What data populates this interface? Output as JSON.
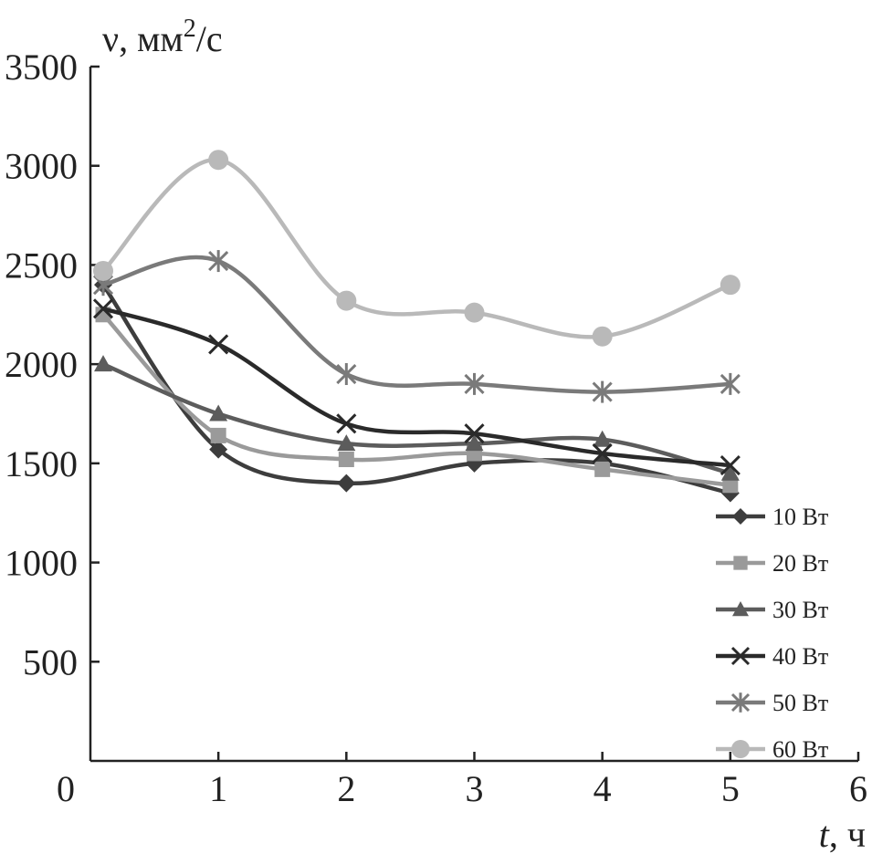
{
  "chart_data": {
    "type": "line",
    "title": "",
    "ylabel": "ν, мм²/с",
    "ylabel_base": "ν, мм",
    "ylabel_sup": "2",
    "ylabel_tail": "/с",
    "xlabel": "t, ч",
    "xlabel_var": "t",
    "xlabel_unit": ", ч",
    "xlim": [
      0,
      6
    ],
    "ylim": [
      0,
      3500
    ],
    "x_ticks": [
      "0",
      "1",
      "2",
      "3",
      "4",
      "5",
      "6"
    ],
    "y_ticks": [
      "500",
      "1000",
      "1500",
      "2000",
      "2500",
      "3000",
      "3500"
    ],
    "grid": false,
    "legend_position": "bottom-right",
    "x": [
      0.1,
      1,
      2,
      3,
      4,
      5
    ],
    "series": [
      {
        "name": "10 Вт",
        "marker": "diamond",
        "color": "#3d3d3d",
        "values": [
          2400,
          1570,
          1400,
          1500,
          1500,
          1350
        ]
      },
      {
        "name": "20 Вт",
        "marker": "square",
        "color": "#9a9a9a",
        "values": [
          2250,
          1640,
          1520,
          1550,
          1470,
          1390
        ]
      },
      {
        "name": "30 Вт",
        "marker": "triangle",
        "color": "#5c5c5c",
        "values": [
          2000,
          1750,
          1600,
          1600,
          1620,
          1450
        ]
      },
      {
        "name": "40 Вт",
        "marker": "x",
        "color": "#2a2a2a",
        "values": [
          2280,
          2100,
          1700,
          1650,
          1550,
          1490
        ]
      },
      {
        "name": "50 Вт",
        "marker": "asterisk",
        "color": "#7a7a7a",
        "values": [
          2400,
          2520,
          1950,
          1900,
          1860,
          1900
        ]
      },
      {
        "name": "60 Вт",
        "marker": "circle",
        "color": "#b9b9b9",
        "values": [
          2470,
          3030,
          2320,
          2260,
          2140,
          2400
        ]
      }
    ]
  }
}
